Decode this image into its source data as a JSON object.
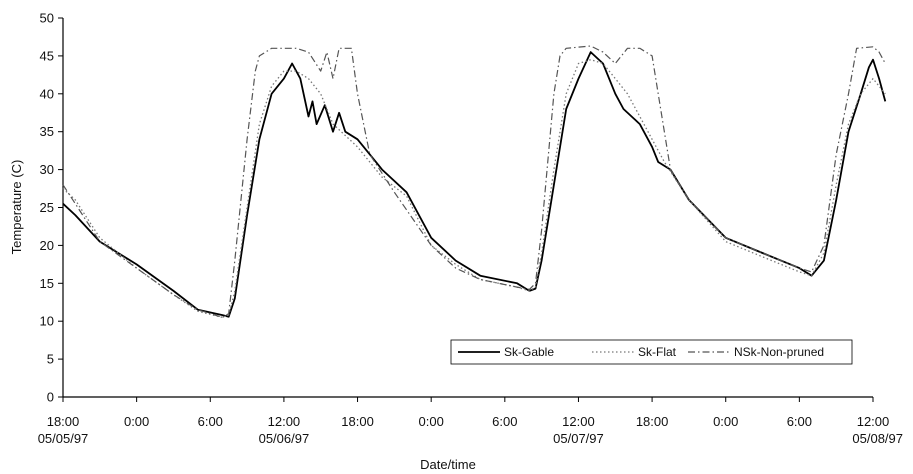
{
  "chart_data": {
    "type": "line",
    "title": "",
    "xlabel": "Date/time",
    "ylabel": "Temperature (C)",
    "ylim": [
      0,
      50
    ],
    "yticks": [
      0,
      5,
      10,
      15,
      20,
      25,
      30,
      35,
      40,
      45,
      50
    ],
    "xlim": [
      "05/05/97 18:00",
      "05/08/97 12:00"
    ],
    "xticks": [
      {
        "time": "18:00",
        "date": "05/05/97"
      },
      {
        "time": "0:00",
        "date": ""
      },
      {
        "time": "6:00",
        "date": ""
      },
      {
        "time": "12:00",
        "date": "05/06/97"
      },
      {
        "time": "18:00",
        "date": ""
      },
      {
        "time": "0:00",
        "date": ""
      },
      {
        "time": "6:00",
        "date": ""
      },
      {
        "time": "12:00",
        "date": "05/07/97"
      },
      {
        "time": "18:00",
        "date": ""
      },
      {
        "time": "0:00",
        "date": ""
      },
      {
        "time": "6:00",
        "date": ""
      },
      {
        "time": "12:00",
        "date": "05/08/97"
      }
    ],
    "grid": false,
    "legend_position": "bottom-right",
    "series": [
      {
        "name": "Sk-Gable",
        "style": "solid",
        "color": "#000000",
        "points": [
          [
            "05/05/97 18:00",
            25.5
          ],
          [
            "05/05/97 19:00",
            24
          ],
          [
            "05/05/97 21:00",
            20.5
          ],
          [
            "05/06/97 00:00",
            17.5
          ],
          [
            "05/06/97 03:00",
            14
          ],
          [
            "05/06/97 05:00",
            11.5
          ],
          [
            "05/06/97 07:00",
            10.8
          ],
          [
            "05/06/97 07:30",
            10.6
          ],
          [
            "05/06/97 08:00",
            13
          ],
          [
            "05/06/97 09:00",
            24
          ],
          [
            "05/06/97 10:00",
            34
          ],
          [
            "05/06/97 11:00",
            40
          ],
          [
            "05/06/97 12:00",
            42
          ],
          [
            "05/06/97 12:40",
            44
          ],
          [
            "05/06/97 13:20",
            42
          ],
          [
            "05/06/97 14:00",
            37
          ],
          [
            "05/06/97 14:20",
            39
          ],
          [
            "05/06/97 14:40",
            36
          ],
          [
            "05/06/97 15:20",
            38.5
          ],
          [
            "05/06/97 16:00",
            35
          ],
          [
            "05/06/97 16:30",
            37.5
          ],
          [
            "05/06/97 17:00",
            35
          ],
          [
            "05/06/97 18:00",
            34
          ],
          [
            "05/06/97 20:00",
            30
          ],
          [
            "05/06/97 22:00",
            27
          ],
          [
            "05/07/97 00:00",
            21
          ],
          [
            "05/07/97 02:00",
            18
          ],
          [
            "05/07/97 04:00",
            16
          ],
          [
            "05/07/97 07:00",
            15
          ],
          [
            "05/07/97 08:00",
            14
          ],
          [
            "05/07/97 08:30",
            14.3
          ],
          [
            "05/07/97 09:00",
            18
          ],
          [
            "05/07/97 10:00",
            28
          ],
          [
            "05/07/97 11:00",
            38
          ],
          [
            "05/07/97 12:00",
            42
          ],
          [
            "05/07/97 13:00",
            45.5
          ],
          [
            "05/07/97 14:00",
            44
          ],
          [
            "05/07/97 15:00",
            40
          ],
          [
            "05/07/97 15:40",
            38
          ],
          [
            "05/07/97 16:20",
            37
          ],
          [
            "05/07/97 17:00",
            36
          ],
          [
            "05/07/97 17:40",
            34
          ],
          [
            "05/07/97 18:00",
            33
          ],
          [
            "05/07/97 18:30",
            31
          ],
          [
            "05/07/97 19:30",
            30
          ],
          [
            "05/07/97 21:00",
            26
          ],
          [
            "05/08/97 00:00",
            21
          ],
          [
            "05/08/97 03:00",
            19
          ],
          [
            "05/08/97 06:00",
            17
          ],
          [
            "05/08/97 07:00",
            16
          ],
          [
            "05/08/97 08:00",
            18
          ],
          [
            "05/08/97 09:00",
            26
          ],
          [
            "05/08/97 10:00",
            35
          ],
          [
            "05/08/97 11:00",
            40
          ],
          [
            "05/08/97 11:40",
            43.5
          ],
          [
            "05/08/97 12:00",
            44.5
          ],
          [
            "05/08/97 12:30",
            42
          ],
          [
            "05/08/97 13:00",
            39
          ]
        ]
      },
      {
        "name": "Sk-Flat",
        "style": "dotted",
        "color": "#777777",
        "points": [
          [
            "05/05/97 18:00",
            27.5
          ],
          [
            "05/05/97 19:00",
            26
          ],
          [
            "05/05/97 21:00",
            21
          ],
          [
            "05/06/97 00:00",
            17
          ],
          [
            "05/06/97 03:00",
            13.5
          ],
          [
            "05/06/97 05:00",
            11.3
          ],
          [
            "05/06/97 07:00",
            10.5
          ],
          [
            "05/06/97 07:30",
            10.8
          ],
          [
            "05/06/97 08:00",
            14
          ],
          [
            "05/06/97 09:00",
            25
          ],
          [
            "05/06/97 10:00",
            36
          ],
          [
            "05/06/97 11:00",
            41
          ],
          [
            "05/06/97 12:00",
            43
          ],
          [
            "05/06/97 13:00",
            43
          ],
          [
            "05/06/97 14:00",
            42
          ],
          [
            "05/06/97 15:00",
            40
          ],
          [
            "05/06/97 16:00",
            36
          ],
          [
            "05/06/97 17:00",
            34.5
          ],
          [
            "05/06/97 18:00",
            33
          ],
          [
            "05/06/97 20:00",
            29
          ],
          [
            "05/06/97 22:00",
            26.5
          ],
          [
            "05/07/97 00:00",
            20
          ],
          [
            "05/07/97 02:00",
            17.5
          ],
          [
            "05/07/97 04:00",
            15.5
          ],
          [
            "05/07/97 07:00",
            14.5
          ],
          [
            "05/07/97 08:00",
            14
          ],
          [
            "05/07/97 08:30",
            14.5
          ],
          [
            "05/07/97 09:00",
            19
          ],
          [
            "05/07/97 10:00",
            30
          ],
          [
            "05/07/97 11:00",
            40
          ],
          [
            "05/07/97 12:00",
            44
          ],
          [
            "05/07/97 13:00",
            44.5
          ],
          [
            "05/07/97 14:00",
            44
          ],
          [
            "05/07/97 15:00",
            42
          ],
          [
            "05/07/97 16:00",
            40
          ],
          [
            "05/07/97 17:00",
            37
          ],
          [
            "05/07/97 18:00",
            34
          ],
          [
            "05/07/97 19:00",
            31
          ],
          [
            "05/07/97 21:00",
            26
          ],
          [
            "05/08/97 00:00",
            20.5
          ],
          [
            "05/08/97 03:00",
            18.5
          ],
          [
            "05/08/97 06:00",
            16.5
          ],
          [
            "05/08/97 07:00",
            16
          ],
          [
            "05/08/97 08:00",
            19
          ],
          [
            "05/08/97 09:00",
            28
          ],
          [
            "05/08/97 10:00",
            36
          ],
          [
            "05/08/97 11:00",
            40
          ],
          [
            "05/08/97 12:00",
            42
          ],
          [
            "05/08/97 13:00",
            40
          ]
        ]
      },
      {
        "name": "NSk-Non-pruned",
        "style": "dashdot",
        "color": "#555555",
        "points": [
          [
            "05/05/97 18:00",
            28
          ],
          [
            "05/05/97 19:00",
            25.5
          ],
          [
            "05/05/97 21:00",
            20.5
          ],
          [
            "05/06/97 00:00",
            17
          ],
          [
            "05/06/97 03:00",
            13.5
          ],
          [
            "05/06/97 05:00",
            11.5
          ],
          [
            "05/06/97 07:00",
            10.5
          ],
          [
            "05/06/97 07:30",
            11
          ],
          [
            "05/06/97 08:00",
            18
          ],
          [
            "05/06/97 09:00",
            34
          ],
          [
            "05/06/97 09:40",
            43
          ],
          [
            "05/06/97 10:00",
            45
          ],
          [
            "05/06/97 11:00",
            46
          ],
          [
            "05/06/97 13:00",
            46
          ],
          [
            "05/06/97 14:00",
            45.5
          ],
          [
            "05/06/97 15:00",
            43
          ],
          [
            "05/06/97 15:30",
            45.5
          ],
          [
            "05/06/97 16:00",
            42
          ],
          [
            "05/06/97 16:30",
            46
          ],
          [
            "05/06/97 17:30",
            46
          ],
          [
            "05/06/97 18:00",
            40
          ],
          [
            "05/06/97 19:00",
            32
          ],
          [
            "05/06/97 21:00",
            27
          ],
          [
            "05/07/97 00:00",
            20
          ],
          [
            "05/07/97 02:00",
            17
          ],
          [
            "05/07/97 04:00",
            15.5
          ],
          [
            "05/07/97 07:00",
            14.5
          ],
          [
            "05/07/97 08:00",
            14.2
          ],
          [
            "05/07/97 08:30",
            15
          ],
          [
            "05/07/97 09:00",
            22
          ],
          [
            "05/07/97 10:00",
            40
          ],
          [
            "05/07/97 10:30",
            45
          ],
          [
            "05/07/97 11:00",
            46
          ],
          [
            "05/07/97 13:00",
            46.3
          ],
          [
            "05/07/97 14:00",
            45.5
          ],
          [
            "05/07/97 15:00",
            44
          ],
          [
            "05/07/97 16:00",
            46
          ],
          [
            "05/07/97 17:00",
            46
          ],
          [
            "05/07/97 18:00",
            45
          ],
          [
            "05/07/97 18:30",
            40
          ],
          [
            "05/07/97 19:30",
            30
          ],
          [
            "05/07/97 21:00",
            26
          ],
          [
            "05/08/97 00:00",
            21
          ],
          [
            "05/08/97 03:00",
            19
          ],
          [
            "05/08/97 06:00",
            17
          ],
          [
            "05/08/97 07:00",
            16.5
          ],
          [
            "05/08/97 08:00",
            20
          ],
          [
            "05/08/97 09:00",
            32
          ],
          [
            "05/08/97 10:00",
            40
          ],
          [
            "05/08/97 10:40",
            46
          ],
          [
            "05/08/97 12:00",
            46.2
          ],
          [
            "05/08/97 12:30",
            45.5
          ],
          [
            "05/08/97 13:00",
            44
          ]
        ]
      }
    ]
  }
}
